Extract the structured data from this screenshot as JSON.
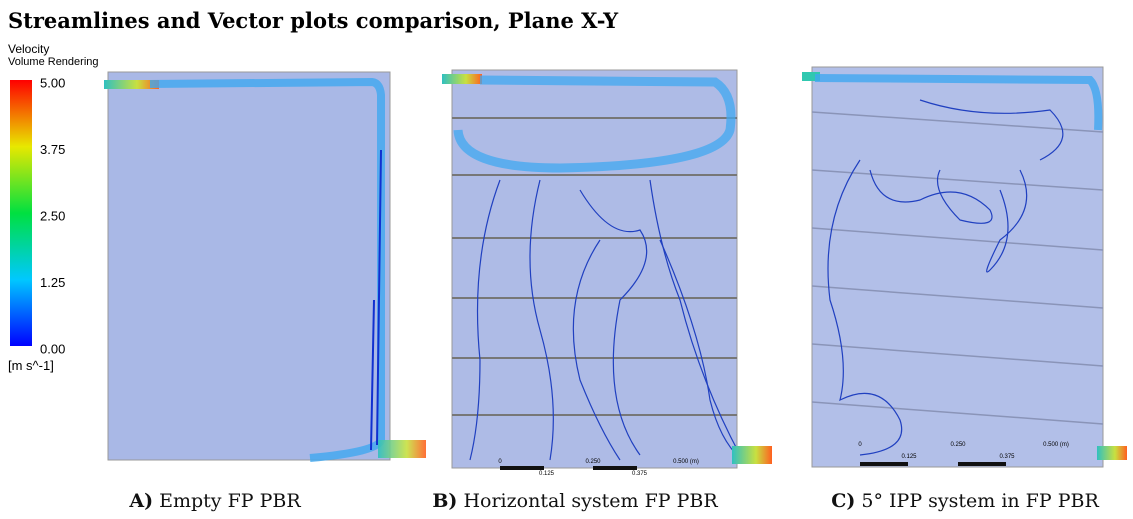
{
  "title": "Streamlines and Vector plots comparison, Plane X-Y",
  "legend": {
    "title": "Velocity",
    "subtitle": "Volume Rendering",
    "ticks": [
      "5.00",
      "3.75",
      "2.50",
      "1.25",
      "0.00"
    ],
    "unit": "[m s^-1]"
  },
  "panels": [
    {
      "label": "A)",
      "caption": "Empty FP PBR"
    },
    {
      "label": "B)",
      "caption": "Horizontal system FP PBR",
      "scale": [
        "0",
        "0.250",
        "0.500 (m)",
        "0.125",
        "0.375"
      ]
    },
    {
      "label": "C)",
      "caption": "5° IPP system in FP PBR",
      "scale": [
        "0",
        "0.250",
        "0.500 (m)",
        "0.125",
        "0.375"
      ]
    }
  ]
}
